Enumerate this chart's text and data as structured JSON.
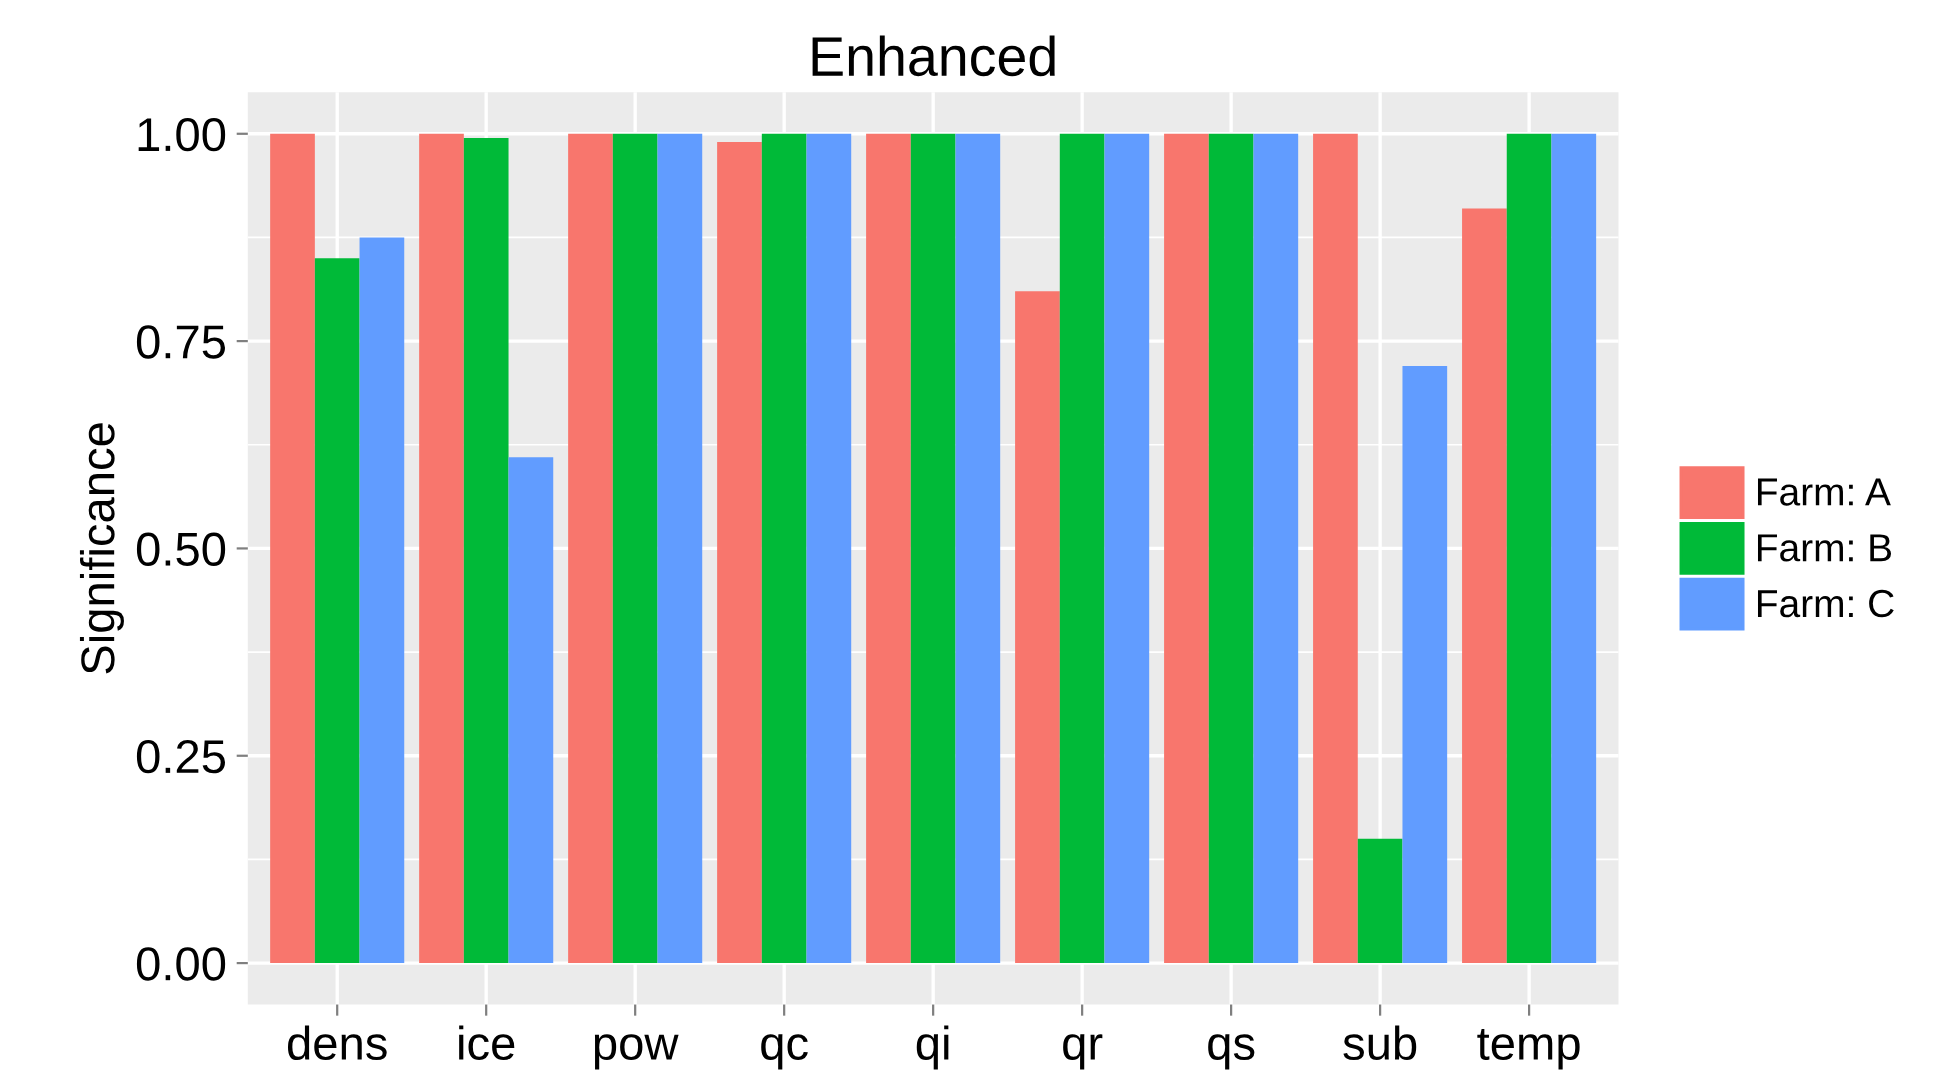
{
  "chart_data": {
    "type": "bar",
    "title": "Enhanced",
    "ylabel": "Significance",
    "categories": [
      "dens",
      "ice",
      "pow",
      "qc",
      "qi",
      "qr",
      "qs",
      "sub",
      "temp"
    ],
    "series": [
      {
        "name": "Farm: A",
        "color": "#f8766d",
        "values": [
          1.0,
          1.0,
          1.0,
          0.99,
          1.0,
          0.81,
          1.0,
          1.0,
          0.91
        ]
      },
      {
        "name": "Farm: B",
        "color": "#00ba38",
        "values": [
          0.85,
          0.995,
          1.0,
          1.0,
          1.0,
          1.0,
          1.0,
          0.15,
          1.0
        ]
      },
      {
        "name": "Farm: C",
        "color": "#619cff",
        "values": [
          0.875,
          0.61,
          1.0,
          1.0,
          1.0,
          1.0,
          1.0,
          0.72,
          1.0
        ]
      }
    ],
    "ylim": [
      -0.05,
      1.05
    ],
    "yticks": [
      {
        "value": 0,
        "label": "0.00"
      },
      {
        "value": 0.25,
        "label": "0.25"
      },
      {
        "value": 0.5,
        "label": "0.50"
      },
      {
        "value": 0.75,
        "label": "0.75"
      },
      {
        "value": 1,
        "label": "1.00"
      }
    ],
    "grid": true,
    "legend": "right"
  }
}
